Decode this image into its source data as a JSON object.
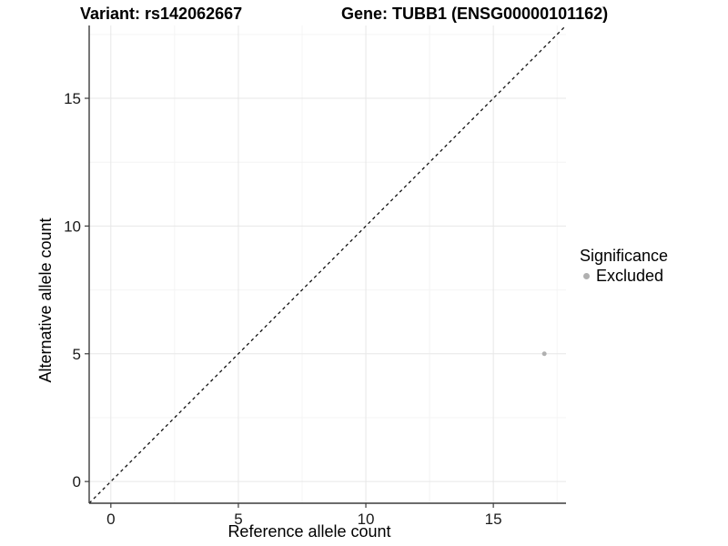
{
  "titles": {
    "variant": "Variant: rs142062667",
    "gene": "Gene: TUBB1 (ENSG00000101162)"
  },
  "axes": {
    "x": {
      "label": "Reference allele count",
      "tick_labels": [
        "0",
        "5",
        "10",
        "15"
      ]
    },
    "y": {
      "label": "Alternative allele count",
      "tick_labels": [
        "0",
        "5",
        "10",
        "15"
      ]
    }
  },
  "legend": {
    "title": "Significance",
    "items": [
      {
        "label": "Excluded",
        "color": "#b0b0b0"
      }
    ]
  },
  "chart_data": {
    "type": "scatter",
    "title": "Variant: rs142062667 | Gene: TUBB1 (ENSG00000101162)",
    "xlabel": "Reference allele count",
    "ylabel": "Alternative allele count",
    "xlim": [
      -0.85,
      17.85
    ],
    "ylim": [
      -0.85,
      17.85
    ],
    "x_ticks": [
      0,
      5,
      10,
      15
    ],
    "y_ticks": [
      0,
      5,
      10,
      15
    ],
    "x_minor_ticks": [
      2.5,
      7.5,
      12.5,
      17.5
    ],
    "y_minor_ticks": [
      2.5,
      7.5,
      12.5,
      17.5
    ],
    "grid": "major+minor",
    "legend_position": "right",
    "legend_title": "Significance",
    "series": [
      {
        "name": "Excluded",
        "color": "#b0b0b0",
        "points": [
          {
            "x": 17,
            "y": 5
          }
        ]
      }
    ],
    "reference_line": {
      "type": "identity",
      "slope": 1,
      "intercept": 0,
      "style": "dashed",
      "color": "#111111"
    }
  }
}
